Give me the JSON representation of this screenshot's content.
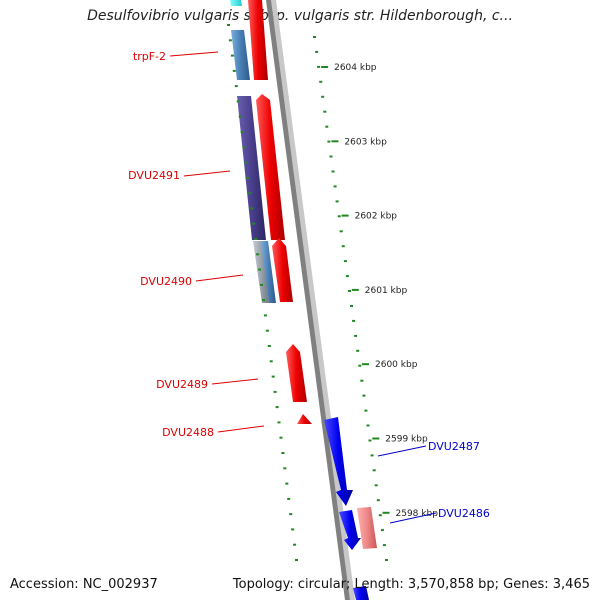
{
  "title": "Desulfovibrio vulgaris subsp. vulgaris str. Hildenborough, c...",
  "footer": {
    "accession": "Accession: NC_002937",
    "summary": "Topology: circular; Length: 3,570,858 bp; Genes: 3,465"
  },
  "scale": {
    "ticks": [
      {
        "kbp": 2604,
        "label": "2604 kbp"
      },
      {
        "kbp": 2603,
        "label": "2603 kbp"
      },
      {
        "kbp": 2602,
        "label": "2602 kbp"
      },
      {
        "kbp": 2601,
        "label": "2601 kbp"
      },
      {
        "kbp": 2600,
        "label": "2600 kbp"
      },
      {
        "kbp": 2599,
        "label": "2599 kbp"
      },
      {
        "kbp": 2598,
        "label": "2598 kbp"
      }
    ]
  },
  "genes": [
    {
      "label": "trpF-2",
      "strand": "reverse",
      "start_kbp": 2604.25,
      "end_kbp": 2605.0,
      "color": "#dd0000"
    },
    {
      "label": "DVU2491",
      "strand": "reverse",
      "start_kbp": 2602.1,
      "end_kbp": 2604.05,
      "color": "#dd0000"
    },
    {
      "label": "DVU2490",
      "strand": "reverse",
      "start_kbp": 2601.3,
      "end_kbp": 2602.1,
      "color": "#dd0000"
    },
    {
      "label": "DVU2489",
      "strand": "reverse",
      "start_kbp": 2599.95,
      "end_kbp": 2600.7,
      "color": "#dd0000"
    },
    {
      "label": "DVU2488",
      "strand": "reverse",
      "start_kbp": 2599.45,
      "end_kbp": 2599.55,
      "color": "#dd0000"
    },
    {
      "label": "DVU2487",
      "strand": "forward",
      "start_kbp": 2598.3,
      "end_kbp": 2599.55,
      "color": "#0000cc"
    },
    {
      "label": "DVU2486",
      "strand": "forward",
      "start_kbp": 2597.65,
      "end_kbp": 2598.2,
      "color": "#0000cc"
    }
  ],
  "colors": {
    "forward": "#0000ee",
    "reverse": "#ee0000",
    "cog_pink": "#ee8888",
    "cog_purple": "#4a3f8c",
    "cog_steel": "#4a7fb5",
    "cog_grey": "#9aa3ad",
    "cog_cyan": "#22dddd",
    "tick": "#228822",
    "backbone": "#808080"
  }
}
